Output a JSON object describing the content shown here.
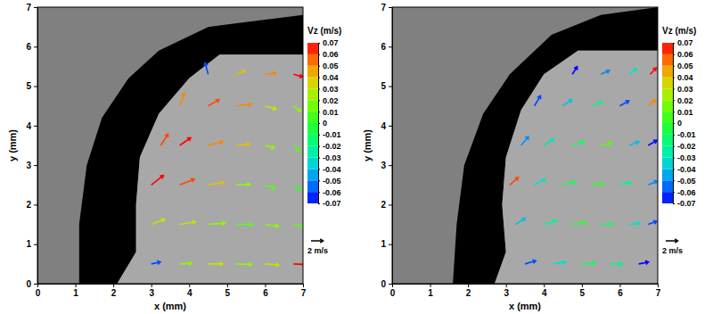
{
  "chart_data": [
    {
      "type": "quiver",
      "xlabel": "x (mm)",
      "ylabel": "y (mm)",
      "xlim": [
        0,
        7
      ],
      "ylim": [
        0,
        7
      ],
      "xticks": [
        0,
        1,
        2,
        3,
        4,
        5,
        6,
        7
      ],
      "yticks": [
        0,
        1,
        2,
        3,
        4,
        5,
        6,
        7
      ],
      "x": [
        3,
        3.75,
        4.5,
        5.25,
        6,
        6.75,
        3,
        3.75,
        4.5,
        5.25,
        6,
        6.75,
        3,
        3.75,
        4.5,
        5.25,
        6,
        6.75,
        3.25,
        3.75,
        4.5,
        5.25,
        6,
        6.75,
        3.75,
        4.5,
        5.25,
        6,
        6.75,
        4.5,
        5.25,
        6,
        6.75
      ],
      "y": [
        0.5,
        0.5,
        0.5,
        0.5,
        0.5,
        0.5,
        1.5,
        1.5,
        1.5,
        1.5,
        1.5,
        1.5,
        2.5,
        2.5,
        2.5,
        2.5,
        2.5,
        2.5,
        3.5,
        3.5,
        3.5,
        3.5,
        3.5,
        3.5,
        4.5,
        4.5,
        4.5,
        4.5,
        4.5,
        5.3,
        5.3,
        5.3,
        5.3
      ],
      "u": [
        1.5,
        2.0,
        2.4,
        2.5,
        2.3,
        2.0,
        2.2,
        2.6,
        2.8,
        2.6,
        2.2,
        1.8,
        2.0,
        2.4,
        2.6,
        2.2,
        1.6,
        1.2,
        1.2,
        1.8,
        2.4,
        2.2,
        1.5,
        1.0,
        0.8,
        1.8,
        2.4,
        1.8,
        1.2,
        -0.5,
        1.4,
        1.8,
        1.5
      ],
      "v": [
        0.3,
        0.1,
        0,
        -0.1,
        -0.2,
        -0.1,
        0.8,
        0.4,
        0.2,
        0,
        -0.3,
        -0.4,
        1.5,
        0.9,
        0.4,
        0.1,
        -0.5,
        -0.8,
        1.8,
        1.2,
        0.6,
        0.2,
        -0.4,
        -0.9,
        2.0,
        1.0,
        0.3,
        -0.5,
        -0.9,
        1.8,
        0.6,
        0.2,
        -0.4
      ],
      "vz": [
        -0.06,
        0.02,
        0.03,
        0.02,
        0.03,
        0.07,
        0.03,
        0.03,
        0.02,
        0.01,
        0.02,
        0.01,
        0.07,
        0.06,
        0.04,
        0.02,
        0.01,
        0,
        0.06,
        0.07,
        0.05,
        0.04,
        0.02,
        0.01,
        0.05,
        0.06,
        0.05,
        0.03,
        0.02,
        -0.06,
        0.04,
        0.05,
        0.07
      ],
      "colorbar": {
        "title": "Vz (m/s)",
        "range": [
          -0.07,
          0.07
        ],
        "ticks": [
          -0.07,
          -0.06,
          -0.05,
          -0.04,
          -0.03,
          -0.02,
          -0.01,
          0,
          0.01,
          0.02,
          0.03,
          0.04,
          0.05,
          0.06,
          0.07
        ]
      },
      "reference_vector": {
        "value": 2,
        "label": "2 m/s"
      }
    },
    {
      "type": "quiver",
      "xlabel": "x (mm)",
      "ylabel": "y (mm)",
      "xlim": [
        0,
        7
      ],
      "ylim": [
        0,
        7
      ],
      "xticks": [
        0,
        1,
        2,
        3,
        4,
        5,
        6,
        7
      ],
      "yticks": [
        0,
        1,
        2,
        3,
        4,
        5,
        6,
        7
      ],
      "x": [
        3.5,
        4.25,
        5,
        5.75,
        6.5,
        3.25,
        4,
        4.75,
        5.5,
        6.25,
        6.75,
        3.1,
        3.75,
        4.5,
        5.25,
        6,
        6.75,
        3.4,
        4,
        4.75,
        5.5,
        6.25,
        6.75,
        3.75,
        4.5,
        5.25,
        6,
        6.75,
        4.75,
        5.5,
        6.25,
        6.8
      ],
      "y": [
        0.5,
        0.5,
        0.5,
        0.5,
        0.5,
        1.5,
        1.5,
        1.5,
        1.5,
        1.5,
        1.5,
        2.5,
        2.5,
        2.5,
        2.5,
        2.5,
        2.5,
        3.5,
        3.5,
        3.5,
        3.5,
        3.5,
        3.5,
        4.5,
        4.5,
        4.5,
        4.5,
        4.5,
        5.3,
        5.3,
        5.3,
        5.3
      ],
      "u": [
        1.8,
        2.0,
        2.2,
        2.0,
        1.6,
        1.6,
        2.0,
        2.2,
        2.0,
        1.8,
        1.4,
        1.4,
        1.8,
        2.0,
        2.0,
        1.8,
        1.5,
        1.2,
        1.6,
        1.9,
        1.8,
        1.6,
        1.4,
        1.0,
        1.5,
        1.8,
        1.5,
        1.2,
        0.8,
        1.4,
        1.2,
        1.0
      ],
      "v": [
        0.5,
        0.3,
        0.1,
        0,
        0.3,
        1.0,
        0.6,
        0.3,
        0.1,
        0.2,
        0.5,
        1.2,
        0.9,
        0.5,
        0.3,
        0.4,
        0.6,
        1.4,
        1.0,
        0.6,
        0.4,
        0.6,
        0.8,
        1.6,
        1.0,
        0.6,
        0.8,
        1.0,
        1.2,
        0.6,
        0.9,
        1.0
      ],
      "vz": [
        -0.06,
        -0.03,
        -0.01,
        -0.02,
        -0.07,
        -0.04,
        -0.02,
        0,
        -0.01,
        -0.03,
        -0.06,
        0.06,
        -0.03,
        -0.01,
        0,
        -0.02,
        -0.05,
        -0.05,
        -0.03,
        -0.01,
        0.01,
        -0.04,
        -0.07,
        -0.06,
        -0.04,
        -0.02,
        -0.06,
        0.05,
        -0.07,
        -0.05,
        -0.03,
        0.07
      ],
      "colorbar": {
        "title": "Vz (m/s)",
        "range": [
          -0.07,
          0.07
        ],
        "ticks": [
          -0.07,
          -0.06,
          -0.05,
          -0.04,
          -0.03,
          -0.02,
          -0.01,
          0,
          0.01,
          0.02,
          0.03,
          0.04,
          0.05,
          0.06,
          0.07
        ]
      },
      "reference_vector": {
        "value": 2,
        "label": "2 m/s"
      }
    }
  ]
}
